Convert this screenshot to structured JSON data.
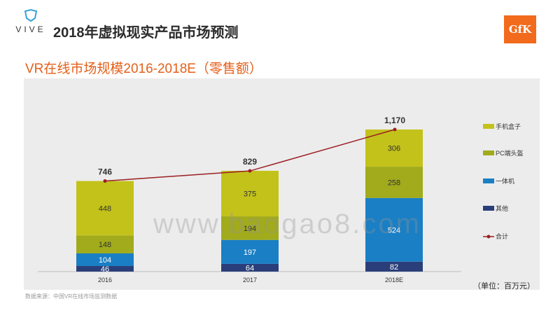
{
  "header": {
    "brand": "VIVE",
    "title": "2018年虚拟现实产品市场预测",
    "partner_logo": "GfK"
  },
  "subtitle": "VR在线市场规模2016-2018E（零售额）",
  "watermark": "www.baogao8.com",
  "unit_note": "（单位：百万元）",
  "source_note": "数据来源：中国VR在线市场监测数据",
  "colors": {
    "other": "#2a3f7a",
    "all_in_one": "#1a7fc4",
    "pc_headset": "#a1ab1b",
    "phone_box": "#c3c21b",
    "total_line": "#9b1f23",
    "accent": "#e4601a"
  },
  "chart_data": {
    "type": "bar",
    "stacked": true,
    "categories": [
      "2016",
      "2017",
      "2018E"
    ],
    "series": [
      {
        "name": "其他",
        "key": "other",
        "values": [
          46,
          64,
          82
        ]
      },
      {
        "name": "一体机",
        "key": "all_in_one",
        "values": [
          104,
          197,
          524
        ]
      },
      {
        "name": "PC端头盔",
        "key": "pc_headset",
        "values": [
          148,
          194,
          258
        ]
      },
      {
        "name": "手机盒子",
        "key": "phone_box",
        "values": [
          448,
          375,
          306
        ]
      }
    ],
    "total": {
      "name": "合计",
      "type": "line",
      "values": [
        746,
        829,
        1170
      ],
      "labels": [
        "746",
        "829",
        "1,170"
      ]
    },
    "ylim": [
      0,
      1300
    ],
    "legend_position": "right"
  }
}
